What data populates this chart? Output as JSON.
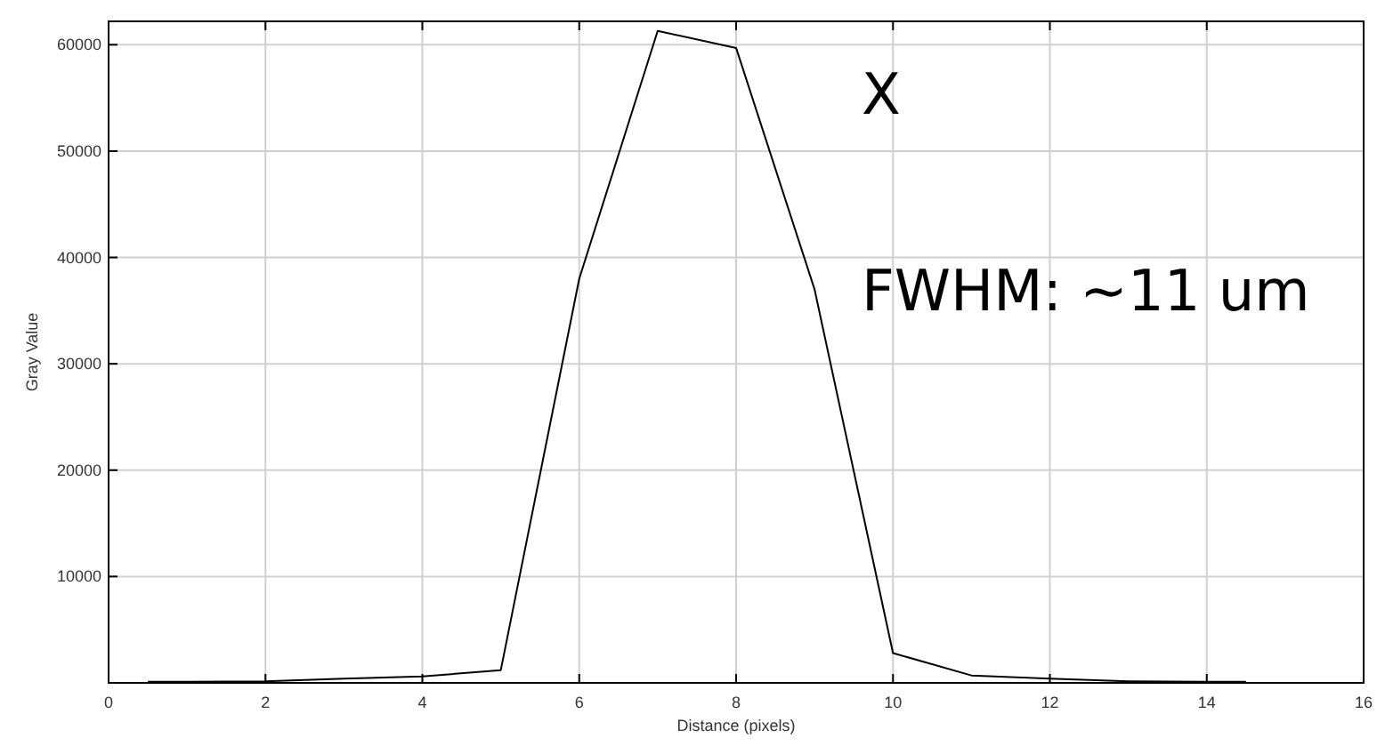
{
  "chart_data": {
    "type": "line",
    "xlabel": "Distance (pixels)",
    "ylabel": "Gray Value",
    "x": [
      0.5,
      1,
      2,
      3,
      4,
      5,
      6,
      7,
      8,
      9,
      10,
      11,
      12,
      13,
      14,
      14.5
    ],
    "series": [
      {
        "color": "#000000",
        "values": [
          100,
          100,
          150,
          400,
          600,
          1200,
          38000,
          61300,
          59700,
          37000,
          2800,
          700,
          400,
          150,
          100,
          100
        ]
      }
    ],
    "xlim": [
      0,
      16
    ],
    "xticks": [
      0,
      2,
      4,
      6,
      8,
      10,
      12,
      14,
      16
    ],
    "ylim": [
      0,
      62200
    ],
    "yticks": [
      10000,
      20000,
      30000,
      40000,
      50000,
      60000
    ],
    "grid": true,
    "marker": "none",
    "line_style": "solid",
    "annotations": [
      "X",
      "FWHM: ~11 um"
    ]
  }
}
